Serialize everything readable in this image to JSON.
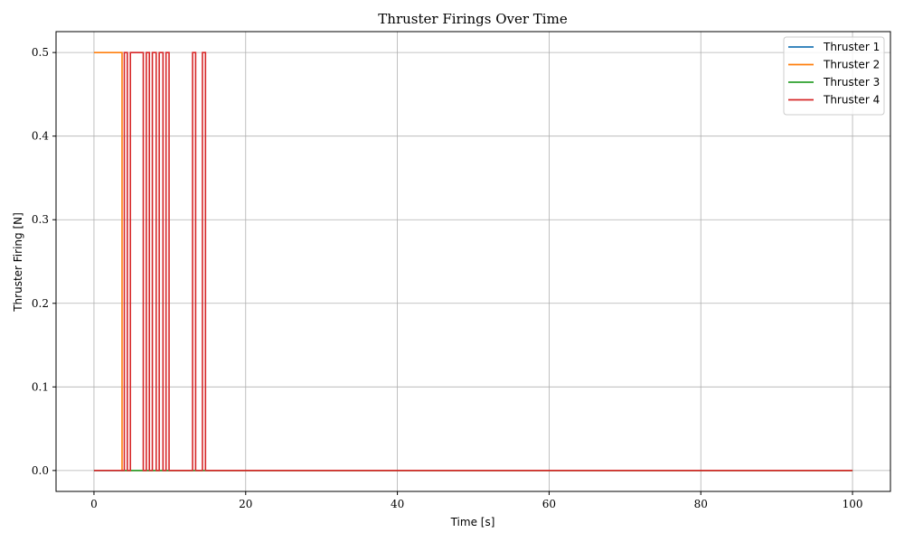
{
  "chart_data": {
    "type": "line",
    "title": "Thruster Firings Over Time",
    "xlabel": "Time [s]",
    "ylabel": "Thruster Firing [N]",
    "xlim": [
      -5,
      105
    ],
    "ylim": [
      -0.025,
      0.525
    ],
    "xticks": [
      0,
      20,
      40,
      60,
      80,
      100
    ],
    "yticks": [
      0.0,
      0.1,
      0.2,
      0.3,
      0.4,
      0.5
    ],
    "xtick_labels": [
      "0",
      "20",
      "40",
      "60",
      "80",
      "100"
    ],
    "ytick_labels": [
      "0.0",
      "0.1",
      "0.2",
      "0.3",
      "0.4",
      "0.5"
    ],
    "grid": true,
    "legend_position": "top-right",
    "series": [
      {
        "name": "Thruster 1",
        "color": "#1f77b4",
        "x": [
          0,
          3.9,
          3.9,
          4.0,
          4.0,
          100
        ],
        "y": [
          0,
          0,
          0,
          0,
          0,
          0
        ]
      },
      {
        "name": "Thruster 2",
        "color": "#ff7f0e",
        "x": [
          0,
          3.7,
          3.7,
          100
        ],
        "y": [
          0.5,
          0.5,
          0,
          0
        ]
      },
      {
        "name": "Thruster 3",
        "color": "#2ca02c",
        "x": [
          0,
          100
        ],
        "y": [
          0,
          0
        ]
      },
      {
        "name": "Thruster 4",
        "color": "#d62728",
        "x": [
          0,
          4.0,
          4.0,
          4.4,
          4.4,
          4.8,
          4.8,
          6.5,
          6.5,
          6.9,
          6.9,
          7.3,
          7.3,
          7.7,
          7.7,
          8.2,
          8.2,
          8.6,
          8.6,
          9.1,
          9.1,
          9.5,
          9.5,
          9.9,
          9.9,
          13.0,
          13.0,
          13.4,
          13.4,
          14.3,
          14.3,
          14.7,
          14.7,
          100
        ],
        "y": [
          0,
          0,
          0.5,
          0.5,
          0,
          0,
          0.5,
          0.5,
          0,
          0,
          0.5,
          0.5,
          0,
          0,
          0.5,
          0.5,
          0,
          0,
          0.5,
          0.5,
          0,
          0,
          0.5,
          0.5,
          0,
          0,
          0.5,
          0.5,
          0,
          0,
          0.5,
          0.5,
          0,
          0
        ]
      }
    ]
  }
}
